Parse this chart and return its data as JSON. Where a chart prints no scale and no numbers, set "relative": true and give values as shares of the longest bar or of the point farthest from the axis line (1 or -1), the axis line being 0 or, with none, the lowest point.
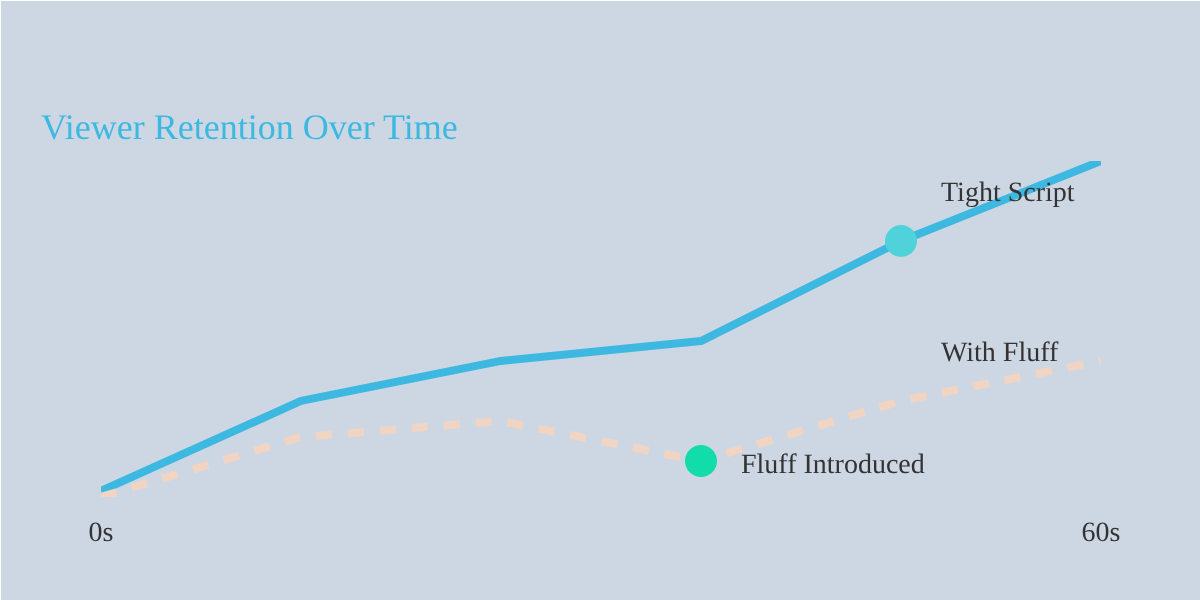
{
  "chart_data": {
    "type": "line",
    "title": "Viewer Retention Over Time",
    "relative": true,
    "x": [
      0,
      12,
      24,
      36,
      48,
      60
    ],
    "xlim": [
      0,
      60
    ],
    "xticks": [
      {
        "value": 0,
        "label": "0s"
      },
      {
        "value": 60,
        "label": "60s"
      }
    ],
    "tick_labels": "x",
    "grid": false,
    "series": [
      {
        "name": "Tight Script",
        "color": "#3db8e0",
        "values": [
          0.018,
          0.286,
          0.405,
          0.464,
          0.762,
          1
        ],
        "line_style": "solid"
      },
      {
        "name": "With Fluff",
        "color": "#f2d4c2",
        "values": [
          0,
          0.179,
          0.226,
          0.107,
          0.286,
          0.405
        ],
        "line_style": "dashed"
      },
      {
        "type": "scatter",
        "x": [
          36,
          48
        ],
        "values": [
          0.107,
          0.762
        ],
        "colors": [
          "#12dcaa",
          "#4fd2da"
        ],
        "marker": "circle"
      }
    ],
    "annotations": [
      {
        "text": "Fluff Introduced",
        "x": 36,
        "y": 0.107
      }
    ]
  }
}
